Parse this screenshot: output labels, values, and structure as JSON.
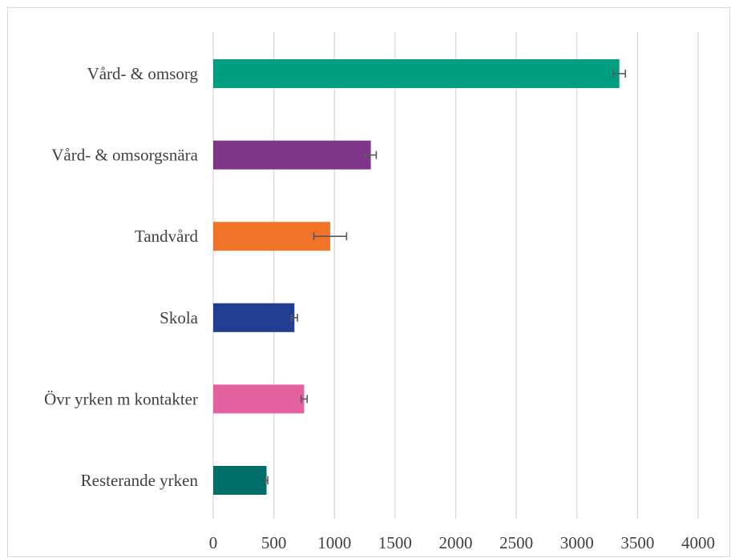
{
  "chart_data": {
    "type": "bar",
    "orientation": "horizontal",
    "categories": [
      "Vård- & omsorg",
      "Vård- & omsorgsnära",
      "Tandvård",
      "Skola",
      "Övr yrken m kontakter",
      "Resterande yrken"
    ],
    "values": [
      3350,
      1300,
      965,
      670,
      750,
      440
    ],
    "error": [
      50,
      45,
      135,
      25,
      25,
      10
    ],
    "colors": [
      "#009e80",
      "#7f368a",
      "#f07328",
      "#213e93",
      "#e4619f",
      "#006f6a"
    ],
    "xlim": [
      0,
      4000
    ],
    "xticks": [
      0,
      500,
      1000,
      1500,
      2000,
      2500,
      3000,
      3500,
      4000
    ],
    "grid": true,
    "legend": "none",
    "title": "",
    "xlabel": "",
    "ylabel": ""
  }
}
